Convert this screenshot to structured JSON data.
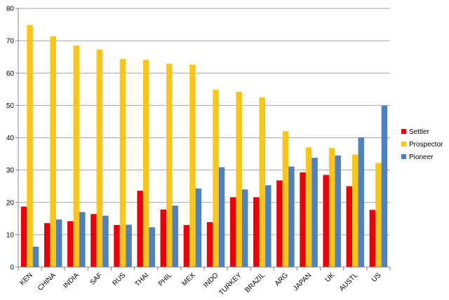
{
  "chart_data": {
    "type": "bar",
    "categories": [
      "KEN",
      "CHINA",
      "INDIA",
      "SAF",
      "RUS",
      "THAI",
      "PHIL",
      "MEX",
      "INDO",
      "TURKEY",
      "BRAZIL",
      "ARG",
      "JAPAN",
      "UK",
      "AUSTL",
      "US"
    ],
    "series": [
      {
        "name": "Settler",
        "color": "#e8000b",
        "values": [
          18.7,
          13.6,
          14.2,
          16.4,
          13.0,
          23.6,
          17.8,
          13.0,
          13.9,
          21.6,
          21.6,
          26.8,
          29.3,
          28.5,
          25.0,
          17.7
        ]
      },
      {
        "name": "Prospector",
        "color": "#f7c51b",
        "values": [
          74.9,
          71.4,
          68.5,
          67.3,
          64.4,
          64.1,
          62.9,
          62.6,
          54.9,
          54.2,
          52.5,
          42.0,
          37.0,
          36.8,
          34.8,
          32.2
        ]
      },
      {
        "name": "Pioneer",
        "color": "#4f81bd",
        "values": [
          6.3,
          14.7,
          17.0,
          15.9,
          13.1,
          12.3,
          19.0,
          24.3,
          30.9,
          24.0,
          25.3,
          31.1,
          33.8,
          34.5,
          40.1,
          49.9
        ]
      }
    ],
    "yticks": [
      "0",
      "10",
      "20",
      "30",
      "40",
      "50",
      "60",
      "70",
      "80"
    ],
    "ylim": [
      0,
      80
    ],
    "grid": "horizontal",
    "legend": "right",
    "title": "",
    "xlabel": "",
    "ylabel": ""
  }
}
